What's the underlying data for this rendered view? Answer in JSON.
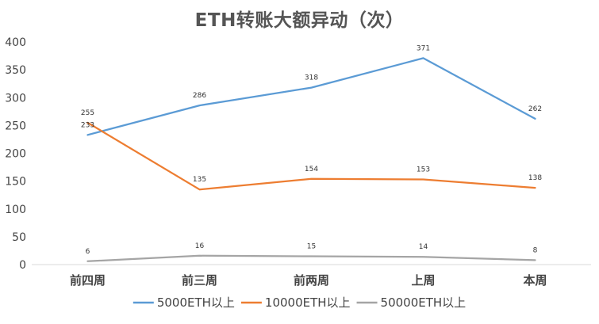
{
  "chart_data": {
    "type": "line",
    "title": "ETH转账大额异动（次）",
    "xlabel": "",
    "ylabel": "",
    "categories": [
      "前四周",
      "前三周",
      "前两周",
      "上周",
      "本周"
    ],
    "ylim": [
      0,
      400
    ],
    "yticks": [
      0,
      50,
      100,
      150,
      200,
      250,
      300,
      350,
      400
    ],
    "grid": false,
    "legend_position": "bottom",
    "series": [
      {
        "name": "5000ETH以上",
        "color": "#5B9BD5",
        "values": [
          233,
          286,
          318,
          371,
          262
        ]
      },
      {
        "name": "10000ETH以上",
        "color": "#ED7D31",
        "values": [
          255,
          135,
          154,
          153,
          138
        ]
      },
      {
        "name": "50000ETH以上",
        "color": "#A5A5A5",
        "values": [
          6,
          16,
          15,
          14,
          8
        ]
      }
    ]
  }
}
